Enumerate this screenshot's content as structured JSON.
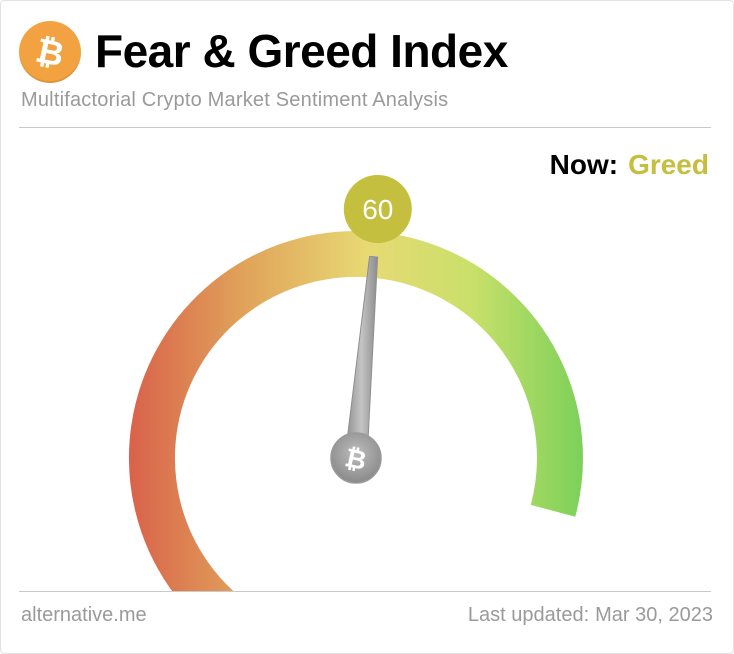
{
  "header": {
    "logo_icon": "bitcoin-icon",
    "title": "Fear & Greed Index",
    "subtitle": "Multifactorial Crypto Market Sentiment Analysis"
  },
  "status": {
    "now_label": "Now:",
    "now_value": "Greed",
    "now_color": "#c5bf3f"
  },
  "gauge": {
    "value": 60,
    "value_text": "60",
    "min": 0,
    "max": 100,
    "badge_color": "#c5bf3f",
    "gradient_colors": [
      "#d9634b",
      "#e0a35a",
      "#e8d974",
      "#c9e06a",
      "#7bd05a"
    ],
    "needle_color": "#a8a8a8",
    "hub_icon": "bitcoin-icon"
  },
  "footer": {
    "source": "alternative.me",
    "updated_label": "Last updated:",
    "updated_date": "Mar 30, 2023"
  }
}
